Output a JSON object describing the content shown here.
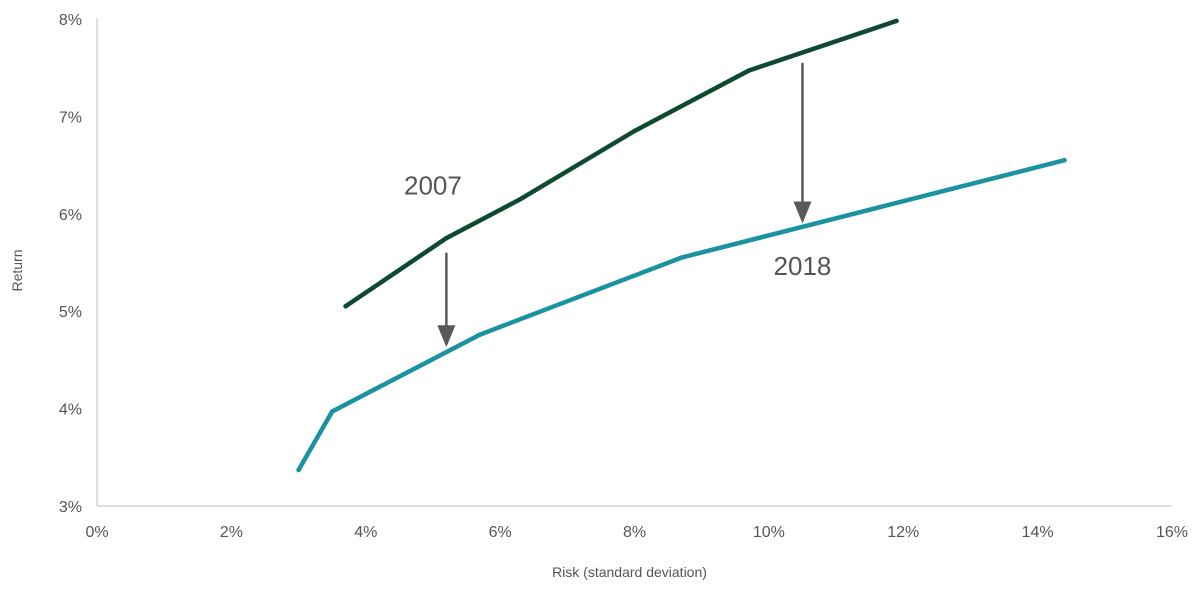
{
  "chart_data": {
    "type": "line",
    "title": "",
    "xlabel": "Risk (standard deviation)",
    "ylabel": "Return",
    "xlim": [
      0,
      16
    ],
    "ylim": [
      3,
      8
    ],
    "x_ticks": [
      "0%",
      "2%",
      "4%",
      "6%",
      "8%",
      "10%",
      "12%",
      "14%",
      "16%"
    ],
    "y_ticks": [
      "3%",
      "4%",
      "5%",
      "6%",
      "7%",
      "8%"
    ],
    "grid": false,
    "series": [
      {
        "name": "2007",
        "color": "#0d4a2e",
        "points": [
          [
            3.7,
            5.05
          ],
          [
            5.2,
            5.75
          ],
          [
            6.3,
            6.15
          ],
          [
            8.0,
            6.85
          ],
          [
            9.7,
            7.47
          ],
          [
            11.9,
            7.98
          ]
        ]
      },
      {
        "name": "2018",
        "color": "#1a92a0",
        "points": [
          [
            3.0,
            3.37
          ],
          [
            3.5,
            3.97
          ],
          [
            5.7,
            4.76
          ],
          [
            8.7,
            5.55
          ],
          [
            14.4,
            6.55
          ]
        ]
      }
    ],
    "annotations": [
      {
        "type": "arrow",
        "from": [
          5.2,
          5.6
        ],
        "to": [
          5.2,
          4.63
        ]
      },
      {
        "type": "arrow",
        "from": [
          10.5,
          7.55
        ],
        "to": [
          10.5,
          5.9
        ]
      }
    ],
    "label_placements": [
      {
        "series": "2007",
        "anchor": [
          5.0,
          6.2
        ]
      },
      {
        "series": "2018",
        "anchor": [
          10.5,
          5.37
        ]
      }
    ]
  }
}
